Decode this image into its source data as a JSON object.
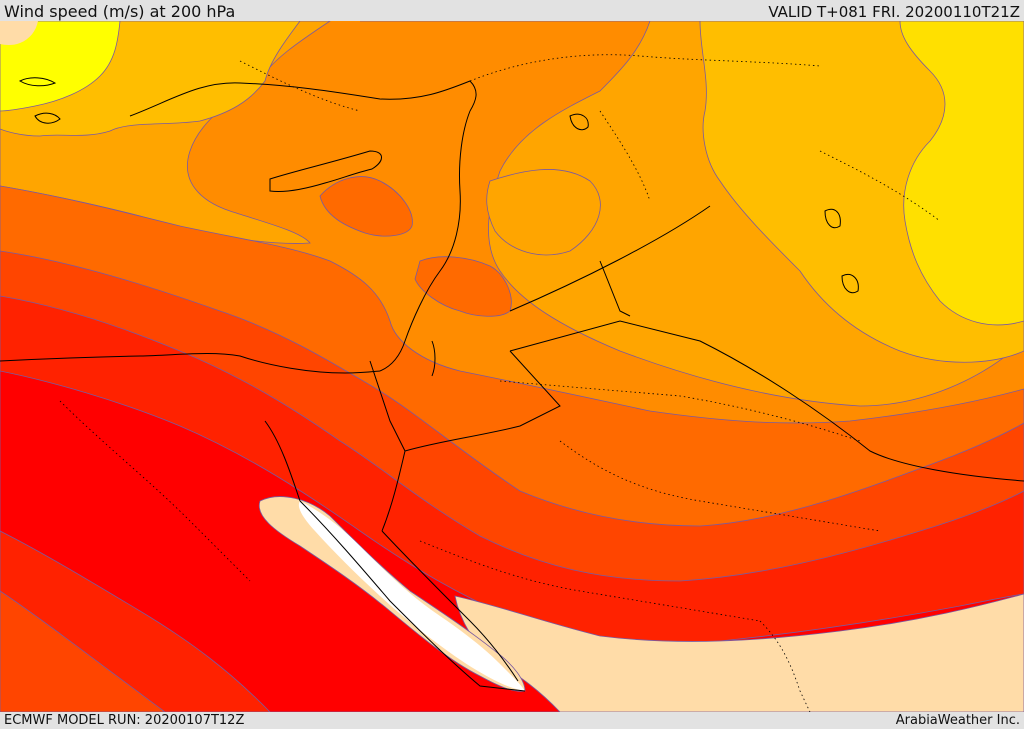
{
  "header": {
    "title": "Wind speed (m/s) at 200 hPa",
    "valid": "VALID T+081 FRI. 20200110T21Z"
  },
  "footer": {
    "model_run": "ECMWF MODEL RUN: 20200107T12Z",
    "credit": "ArabiaWeather Inc."
  },
  "colors": {
    "band_light_peach": "#ffdca8",
    "band_yellow": "#ffff00",
    "band_gold": "#ffe000",
    "band_light_orange": "#ffbe00",
    "band_amber": "#ffa500",
    "band_orange": "#ff8c00",
    "band_dark_orange": "#ff6a00",
    "band_red_orange": "#ff4500",
    "band_red": "#ff2200",
    "band_bright_red": "#ff0000",
    "band_white": "#ffffff",
    "contour_line": "#7a5aa0",
    "coastline": "#000000"
  }
}
